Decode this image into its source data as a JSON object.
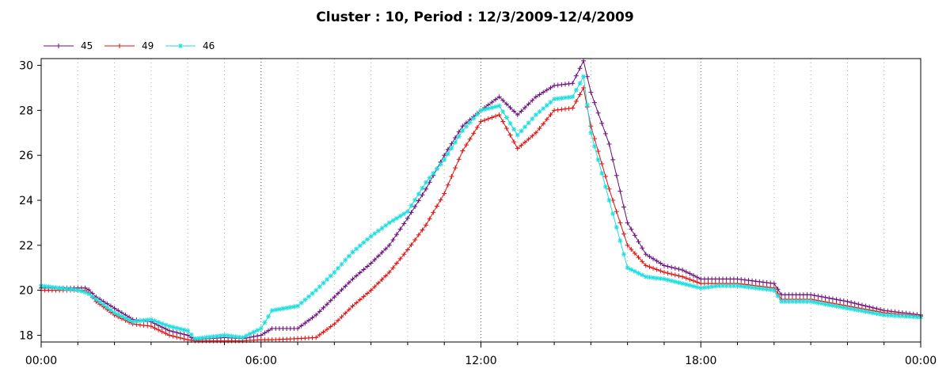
{
  "chart_data": {
    "type": "line",
    "title": "Cluster : 10, Period : 12/3/2009-12/4/2009",
    "xlabel": "",
    "ylabel": "",
    "x_ticks": [
      "00:00",
      "06:00",
      "12:00",
      "18:00",
      "00:00"
    ],
    "y_ticks": [
      "18",
      "20",
      "22",
      "24",
      "26",
      "28",
      "30"
    ],
    "xlim_hours": [
      0,
      24
    ],
    "ylim": [
      17.7,
      30.3
    ],
    "grid": "dotted vertical, major every 6 hours",
    "legend_position": "top-left",
    "series": [
      {
        "name": "45",
        "color": "#6a0d7a",
        "marker": "plus",
        "points": [
          [
            0,
            20.1
          ],
          [
            1,
            20.1
          ],
          [
            1.25,
            20.1
          ],
          [
            1.5,
            19.7
          ],
          [
            2,
            19.2
          ],
          [
            2.5,
            18.7
          ],
          [
            3,
            18.6
          ],
          [
            3.5,
            18.2
          ],
          [
            4,
            18.0
          ],
          [
            4.2,
            17.8
          ],
          [
            5,
            17.9
          ],
          [
            5.5,
            17.85
          ],
          [
            6,
            18.0
          ],
          [
            6.3,
            18.3
          ],
          [
            7,
            18.3
          ],
          [
            7.5,
            18.9
          ],
          [
            8,
            19.7
          ],
          [
            8.5,
            20.5
          ],
          [
            9,
            21.2
          ],
          [
            9.5,
            22.0
          ],
          [
            10,
            23.2
          ],
          [
            10.5,
            24.5
          ],
          [
            11,
            26.0
          ],
          [
            11.5,
            27.3
          ],
          [
            12,
            28.0
          ],
          [
            12.5,
            28.6
          ],
          [
            13,
            27.8
          ],
          [
            13.5,
            28.6
          ],
          [
            14,
            29.1
          ],
          [
            14.5,
            29.2
          ],
          [
            14.8,
            30.2
          ],
          [
            15,
            28.8
          ],
          [
            15.5,
            26.5
          ],
          [
            16,
            23.0
          ],
          [
            16.5,
            21.6
          ],
          [
            17,
            21.1
          ],
          [
            17.5,
            20.9
          ],
          [
            18,
            20.5
          ],
          [
            18.5,
            20.5
          ],
          [
            19,
            20.5
          ],
          [
            20,
            20.3
          ],
          [
            20.2,
            19.8
          ],
          [
            21,
            19.8
          ],
          [
            22,
            19.5
          ],
          [
            23,
            19.1
          ],
          [
            24,
            18.9
          ]
        ]
      },
      {
        "name": "49",
        "color": "#e0100e",
        "marker": "plus",
        "points": [
          [
            0,
            20.0
          ],
          [
            1,
            20.0
          ],
          [
            1.25,
            20.0
          ],
          [
            1.5,
            19.5
          ],
          [
            2,
            18.9
          ],
          [
            2.5,
            18.5
          ],
          [
            3,
            18.4
          ],
          [
            3.5,
            18.0
          ],
          [
            4,
            17.8
          ],
          [
            4.2,
            17.75
          ],
          [
            5,
            17.75
          ],
          [
            5.5,
            17.75
          ],
          [
            6,
            17.8
          ],
          [
            6.3,
            17.8
          ],
          [
            7,
            17.85
          ],
          [
            7.5,
            17.9
          ],
          [
            8,
            18.5
          ],
          [
            8.5,
            19.3
          ],
          [
            9,
            20.0
          ],
          [
            9.5,
            20.8
          ],
          [
            10,
            21.8
          ],
          [
            10.5,
            22.9
          ],
          [
            11,
            24.3
          ],
          [
            11.5,
            26.2
          ],
          [
            12,
            27.5
          ],
          [
            12.5,
            27.8
          ],
          [
            13,
            26.3
          ],
          [
            13.5,
            27.0
          ],
          [
            14,
            28.0
          ],
          [
            14.5,
            28.1
          ],
          [
            14.8,
            29.0
          ],
          [
            15,
            27.3
          ],
          [
            15.5,
            24.5
          ],
          [
            16,
            22.0
          ],
          [
            16.5,
            21.1
          ],
          [
            17,
            20.8
          ],
          [
            17.5,
            20.6
          ],
          [
            18,
            20.3
          ],
          [
            18.5,
            20.3
          ],
          [
            19,
            20.3
          ],
          [
            20,
            20.1
          ],
          [
            20.2,
            19.6
          ],
          [
            21,
            19.6
          ],
          [
            22,
            19.3
          ],
          [
            23,
            19.0
          ],
          [
            24,
            18.85
          ]
        ]
      },
      {
        "name": "46",
        "color": "#1edede",
        "marker": "asterisk",
        "points": [
          [
            0,
            20.2
          ],
          [
            1,
            20.0
          ],
          [
            1.25,
            19.9
          ],
          [
            1.5,
            19.6
          ],
          [
            2,
            19.0
          ],
          [
            2.5,
            18.6
          ],
          [
            3,
            18.7
          ],
          [
            3.5,
            18.4
          ],
          [
            4,
            18.2
          ],
          [
            4.2,
            17.85
          ],
          [
            5,
            18.0
          ],
          [
            5.5,
            17.9
          ],
          [
            6,
            18.3
          ],
          [
            6.3,
            19.1
          ],
          [
            7,
            19.3
          ],
          [
            7.5,
            20.0
          ],
          [
            8,
            20.8
          ],
          [
            8.5,
            21.7
          ],
          [
            9,
            22.4
          ],
          [
            9.5,
            23.0
          ],
          [
            10,
            23.5
          ],
          [
            10.5,
            24.8
          ],
          [
            11,
            25.8
          ],
          [
            11.5,
            27.1
          ],
          [
            12,
            28.0
          ],
          [
            12.5,
            28.2
          ],
          [
            13,
            26.9
          ],
          [
            13.5,
            27.8
          ],
          [
            14,
            28.5
          ],
          [
            14.5,
            28.6
          ],
          [
            14.8,
            29.5
          ],
          [
            15,
            27.0
          ],
          [
            15.5,
            24.0
          ],
          [
            16,
            21.0
          ],
          [
            16.5,
            20.6
          ],
          [
            17,
            20.5
          ],
          [
            17.5,
            20.3
          ],
          [
            18,
            20.1
          ],
          [
            18.5,
            20.2
          ],
          [
            19,
            20.2
          ],
          [
            20,
            20.0
          ],
          [
            20.2,
            19.5
          ],
          [
            21,
            19.5
          ],
          [
            22,
            19.2
          ],
          [
            23,
            18.9
          ],
          [
            24,
            18.8
          ]
        ]
      }
    ]
  }
}
